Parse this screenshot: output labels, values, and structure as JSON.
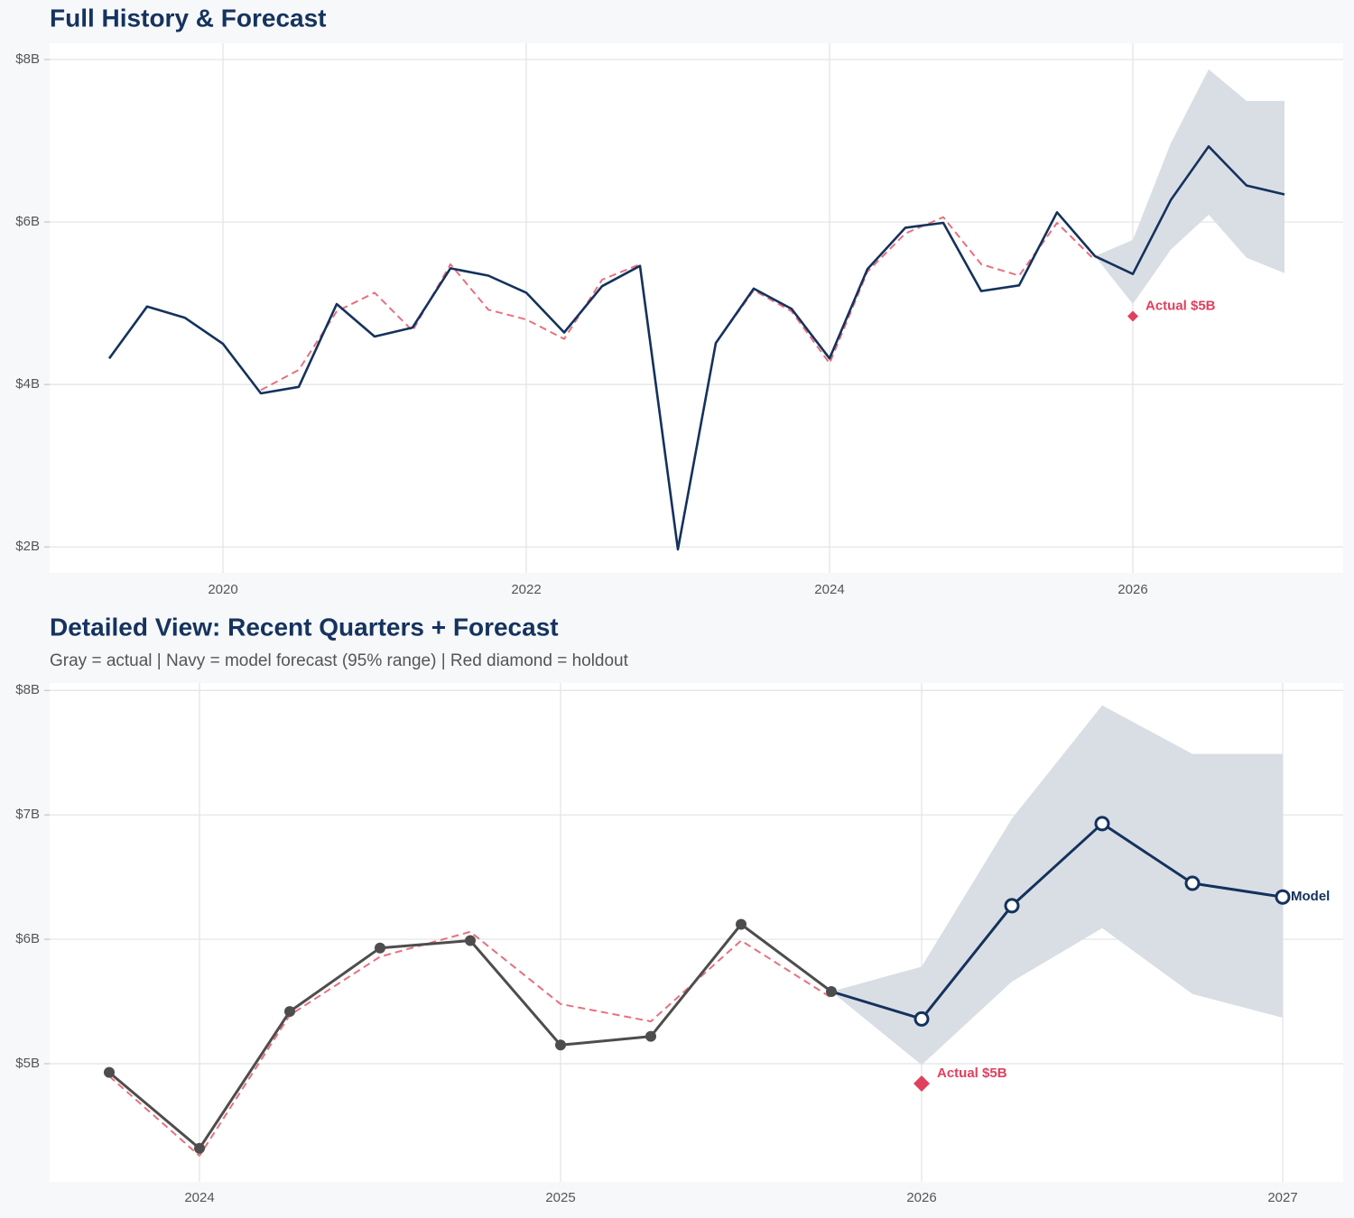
{
  "chart_data": [
    {
      "type": "line",
      "title": "Full History & Forecast",
      "xlim": [
        2018.857,
        2027.387
      ],
      "xticks": [
        2020,
        2022,
        2024,
        2026
      ],
      "ylim": [
        1.68,
        8.2
      ],
      "yticks": [
        {
          "value": 2,
          "label": "$2B"
        },
        {
          "value": 4,
          "label": "$4B"
        },
        {
          "value": 6,
          "label": "$6B"
        },
        {
          "value": 8,
          "label": "$8B"
        }
      ],
      "grid": true,
      "band": {
        "color": "#d9dee5",
        "x": [
          2025.75,
          2026,
          2026.25,
          2026.5,
          2026.75,
          2027
        ],
        "lower": [
          5.58,
          4.99,
          5.66,
          6.09,
          5.56,
          5.37
        ],
        "upper": [
          5.58,
          5.78,
          6.97,
          7.88,
          7.49,
          7.49
        ]
      },
      "series": [
        {
          "color": "#e8707f",
          "line": "dashed",
          "x": [
            2020.25,
            2020.5,
            2020.75,
            2021,
            2021.25,
            2021.5,
            2021.75,
            2022,
            2022.25,
            2022.5,
            2022.75,
            2023,
            2023.25,
            2023.5,
            2023.75,
            2024,
            2024.25,
            2024.5,
            2024.75,
            2025,
            2025.25,
            2025.5,
            2025.75
          ],
          "values": [
            3.93,
            4.18,
            4.9,
            5.13,
            4.66,
            5.48,
            4.92,
            4.8,
            4.56,
            5.29,
            5.48,
            1.98,
            4.51,
            5.16,
            4.9,
            4.26,
            5.39,
            5.86,
            6.06,
            5.48,
            5.34,
            5.99,
            5.53
          ]
        },
        {
          "color": "#14325c",
          "line": "solid",
          "x": [
            2019.25,
            2019.5,
            2019.75,
            2020,
            2020.25,
            2020.5,
            2020.75,
            2021,
            2021.25,
            2021.5,
            2021.75,
            2022,
            2022.25,
            2022.5,
            2022.75,
            2023,
            2023.25,
            2023.5,
            2023.75,
            2024,
            2024.25,
            2024.5,
            2024.75,
            2025,
            2025.25,
            2025.5,
            2025.75,
            2026,
            2026.25,
            2026.5,
            2026.75,
            2027
          ],
          "values": [
            4.32,
            4.96,
            4.82,
            4.5,
            3.89,
            3.97,
            4.99,
            4.59,
            4.7,
            5.43,
            5.34,
            5.13,
            4.64,
            5.21,
            5.46,
            1.97,
            4.51,
            5.18,
            4.93,
            4.32,
            5.42,
            5.93,
            5.99,
            5.15,
            5.22,
            6.12,
            5.58,
            5.36,
            6.27,
            6.93,
            6.45,
            6.34
          ]
        },
        {
          "color": "#e0405e",
          "line": "none",
          "marker": "diamond",
          "x": [
            2026
          ],
          "values": [
            4.84
          ],
          "value_labels": [
            "Actual $5B"
          ]
        }
      ]
    },
    {
      "type": "line",
      "title": "Detailed View: Recent Quarters + Forecast",
      "subtitle": "Gray = actual  |  Navy = model forecast (95% range)  |  Red diamond = holdout",
      "xlim": [
        2023.585,
        2027.1675
      ],
      "xticks": [
        2024,
        2025,
        2026,
        2027
      ],
      "ylim": [
        4.05,
        8.06
      ],
      "yticks": [
        {
          "value": 5,
          "label": "$5B"
        },
        {
          "value": 6,
          "label": "$6B"
        },
        {
          "value": 7,
          "label": "$7B"
        },
        {
          "value": 8,
          "label": "$8B"
        }
      ],
      "grid": true,
      "band": {
        "color": "#d9dee5",
        "x": [
          2025.75,
          2026,
          2026.25,
          2026.5,
          2026.75,
          2027
        ],
        "lower": [
          5.58,
          4.99,
          5.66,
          6.09,
          5.56,
          5.37
        ],
        "upper": [
          5.58,
          5.78,
          6.97,
          7.88,
          7.49,
          7.49
        ]
      },
      "series": [
        {
          "color": "#e8707f",
          "line": "dashed",
          "x": [
            2023.75,
            2024,
            2024.25,
            2024.5,
            2024.75,
            2025,
            2025.25,
            2025.5,
            2025.75
          ],
          "values": [
            4.9,
            4.26,
            5.39,
            5.86,
            6.06,
            5.48,
            5.34,
            5.99,
            5.53
          ]
        },
        {
          "color": "#4d4d4d",
          "line": "solid",
          "marker": "dot",
          "x": [
            2023.75,
            2024,
            2024.25,
            2024.5,
            2024.75,
            2025,
            2025.25,
            2025.5,
            2025.75
          ],
          "values": [
            4.93,
            4.32,
            5.42,
            5.93,
            5.99,
            5.15,
            5.22,
            6.12,
            5.58
          ]
        },
        {
          "name": "Model",
          "color": "#14325c",
          "line": "solid",
          "marker": "open-circle",
          "join": true,
          "end_label": true,
          "x": [
            2026,
            2026.25,
            2026.5,
            2026.75,
            2027
          ],
          "values": [
            5.36,
            6.27,
            6.93,
            6.45,
            6.34
          ]
        },
        {
          "color": "#e0405e",
          "line": "none",
          "marker": "diamond",
          "x": [
            2026
          ],
          "values": [
            4.84
          ],
          "value_labels": [
            "Actual $5B"
          ]
        }
      ]
    }
  ]
}
